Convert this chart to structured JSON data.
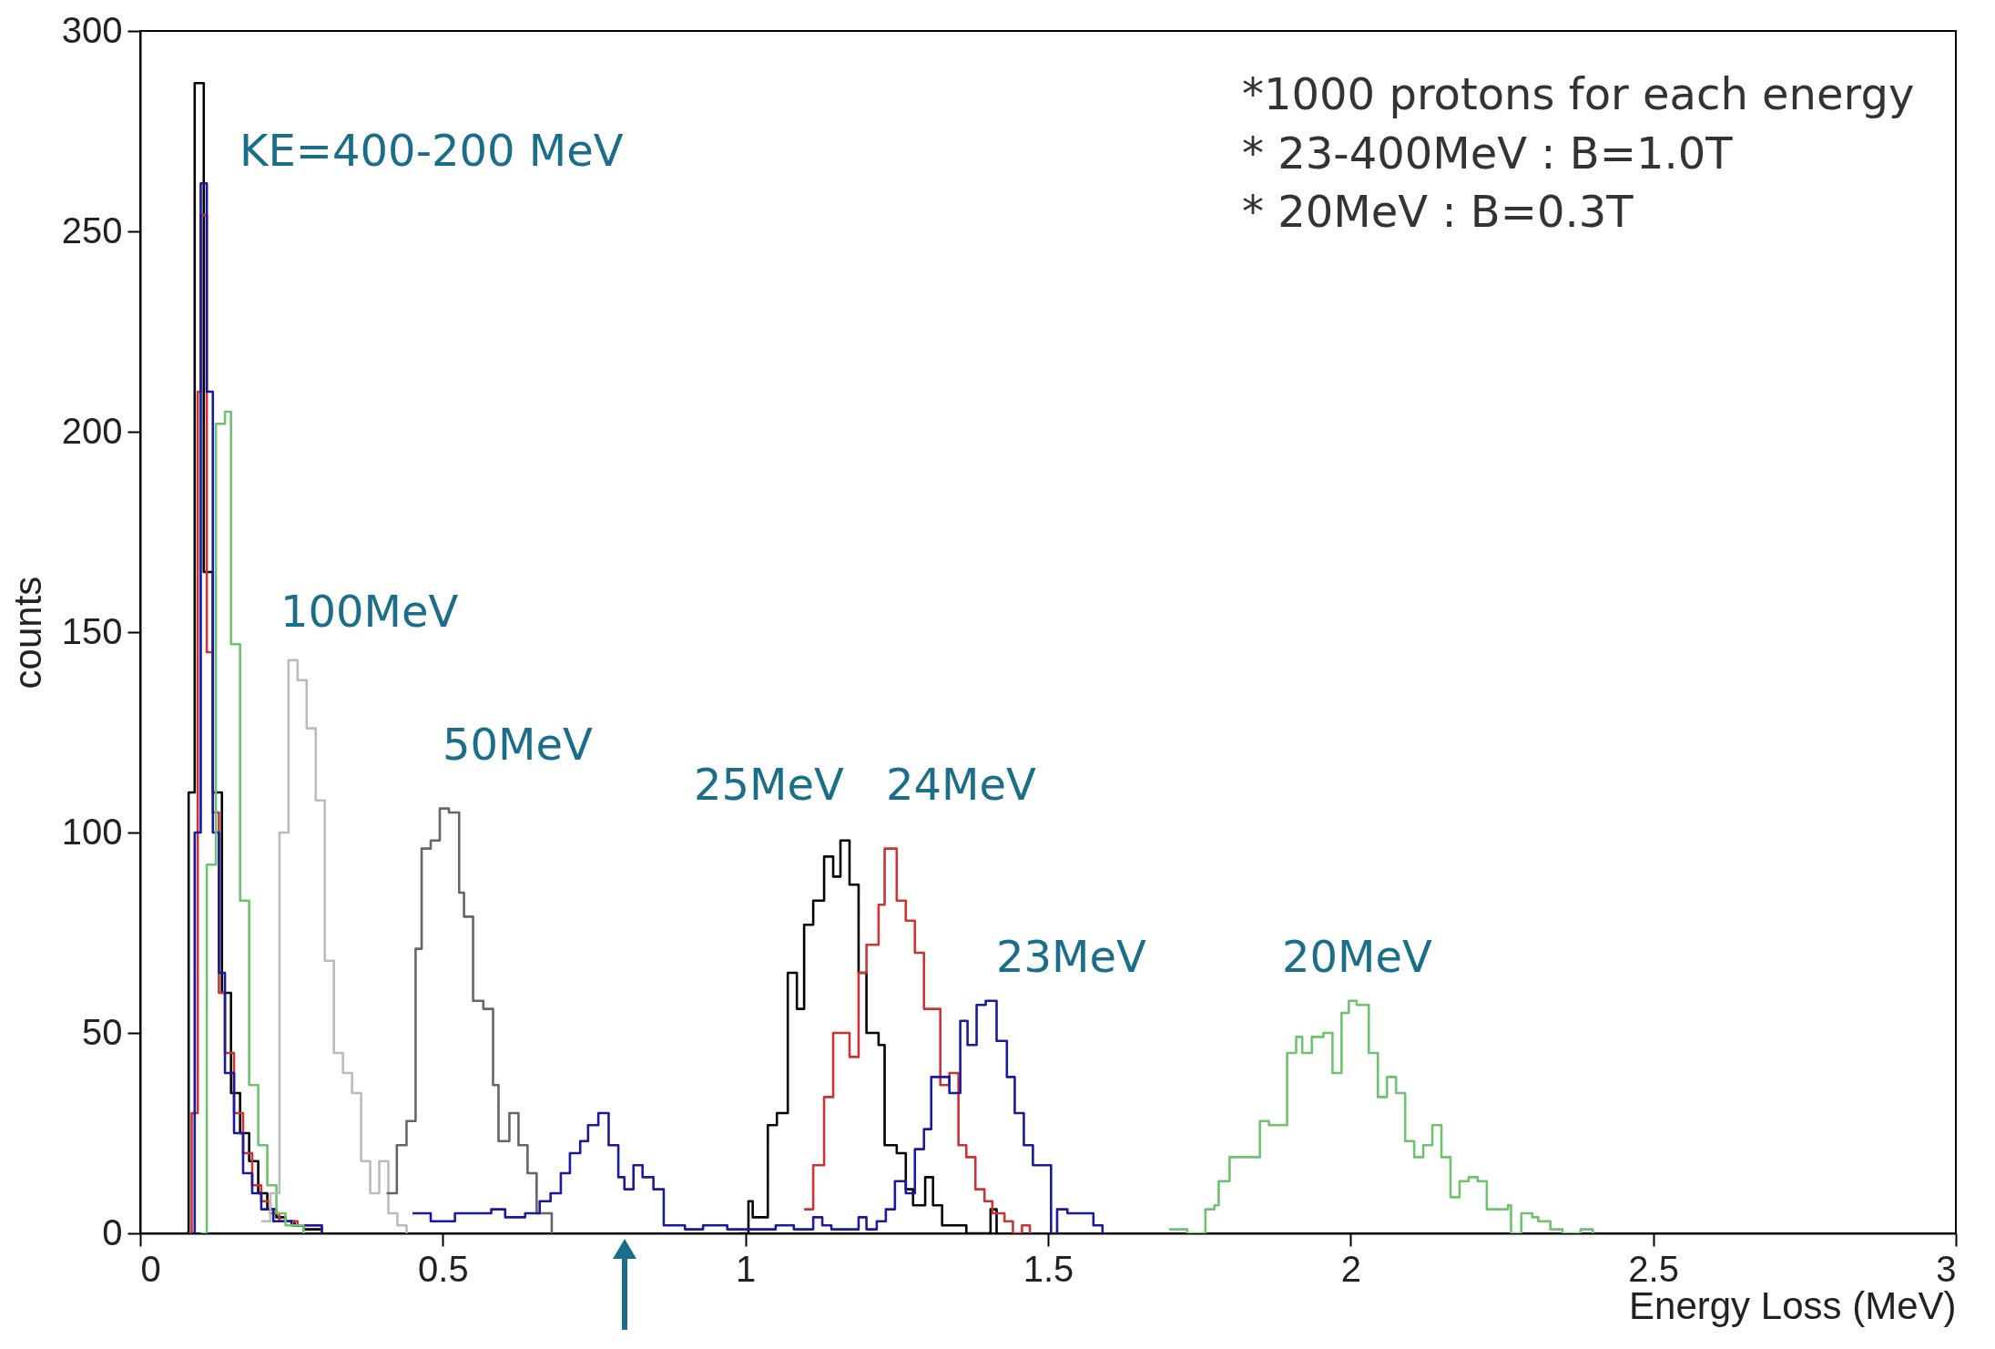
{
  "chart_data": {
    "type": "step",
    "xlabel": "Energy Loss (MeV)",
    "ylabel": "counts",
    "xlim": [
      0,
      3
    ],
    "xticks": [
      0,
      0.5,
      1,
      1.5,
      2,
      2.5,
      3
    ],
    "ylim": [
      0,
      300
    ],
    "yticks": [
      0,
      50,
      100,
      150,
      200,
      250,
      300
    ],
    "grid": false,
    "legend": false,
    "series": [
      {
        "color": "#000000",
        "x": [
          0.075,
          0.08,
          0.09,
          0.105,
          0.12,
          0.135,
          0.15,
          0.165,
          0.18,
          0.195,
          0.21,
          0.225,
          0.24,
          0.255,
          0.27,
          0.3
        ],
        "values": [
          0,
          110,
          287,
          165,
          110,
          60,
          35,
          25,
          18,
          10,
          6,
          4,
          3,
          2,
          1,
          0
        ]
      },
      {
        "color": "#cc3333",
        "x": [
          0.08,
          0.085,
          0.095,
          0.1,
          0.11,
          0.12,
          0.13,
          0.14,
          0.155,
          0.17,
          0.185,
          0.2,
          0.215,
          0.23,
          0.26,
          0.3
        ],
        "values": [
          0,
          30,
          210,
          254,
          145,
          105,
          60,
          45,
          30,
          20,
          12,
          8,
          5,
          3,
          2,
          0
        ]
      },
      {
        "color": "#1a1aa0",
        "x": [
          0.085,
          0.09,
          0.1,
          0.11,
          0.12,
          0.13,
          0.14,
          0.155,
          0.17,
          0.185,
          0.2,
          0.22,
          0.25,
          0.3
        ],
        "values": [
          0,
          100,
          262,
          210,
          100,
          65,
          40,
          25,
          15,
          10,
          6,
          3,
          2,
          0
        ]
      },
      {
        "color": "#6fc26f",
        "x": [
          0.1,
          0.11,
          0.125,
          0.14,
          0.15,
          0.165,
          0.18,
          0.195,
          0.21,
          0.225,
          0.24,
          0.27
        ],
        "values": [
          0,
          92,
          202,
          205,
          147,
          83,
          37,
          22,
          12,
          5,
          2,
          0
        ]
      },
      {
        "color": "#bbbbbb",
        "x": [
          0.2,
          0.215,
          0.23,
          0.245,
          0.26,
          0.275,
          0.29,
          0.305,
          0.32,
          0.335,
          0.35,
          0.365,
          0.38,
          0.395,
          0.41,
          0.425,
          0.44
        ],
        "values": [
          3,
          10,
          100,
          143,
          138,
          126,
          108,
          68,
          45,
          40,
          35,
          18,
          10,
          18,
          5,
          2,
          0
        ]
      },
      {
        "color": "#666666",
        "x": [
          0.407,
          0.424,
          0.44,
          0.455,
          0.465,
          0.48,
          0.495,
          0.51,
          0.527,
          0.535,
          0.55,
          0.567,
          0.583,
          0.592,
          0.61,
          0.625,
          0.64,
          0.655,
          0.68
        ],
        "values": [
          10,
          22,
          28,
          71,
          96,
          98,
          106,
          105,
          85,
          79,
          58,
          56,
          37,
          23,
          30,
          22,
          15,
          5,
          0
        ]
      },
      {
        "color": "#000000",
        "x": [
          0.99,
          1.005,
          1.012,
          1.022,
          1.037,
          1.052,
          1.07,
          1.085,
          1.097,
          1.112,
          1.13,
          1.145,
          1.157,
          1.172,
          1.187,
          1.2,
          1.22,
          1.23,
          1.25,
          1.265,
          1.277,
          1.297,
          1.31,
          1.325,
          1.365,
          1.405,
          1.415
        ],
        "values": [
          0,
          8,
          4,
          4,
          27,
          30,
          65,
          56,
          77,
          83,
          94,
          89,
          98,
          87,
          65,
          50,
          47,
          22,
          20,
          11,
          7,
          14,
          7,
          2,
          0,
          6,
          0
        ]
      },
      {
        "color": "#cc3333",
        "x": [
          1.097,
          1.112,
          1.13,
          1.145,
          1.157,
          1.172,
          1.187,
          1.2,
          1.22,
          1.23,
          1.25,
          1.265,
          1.28,
          1.295,
          1.322,
          1.337,
          1.352,
          1.365,
          1.38,
          1.395,
          1.408,
          1.428,
          1.442,
          1.457,
          1.47
        ],
        "values": [
          6,
          17,
          34,
          50,
          50,
          44,
          65,
          72,
          82,
          96,
          83,
          78,
          70,
          56,
          37,
          40,
          22,
          19,
          11,
          8,
          5,
          3,
          0,
          2,
          0
        ]
      },
      {
        "color": "#1a1aa0",
        "x": [
          0.45,
          0.48,
          0.52,
          0.58,
          0.603,
          0.636,
          0.66,
          0.678,
          0.695,
          0.71,
          0.727,
          0.74,
          0.757,
          0.774,
          0.79,
          0.8,
          0.815,
          0.83,
          0.848,
          0.865,
          0.9,
          0.93,
          0.97,
          1.02,
          1.05,
          1.08,
          1.112,
          1.127,
          1.142,
          1.187,
          1.2,
          1.217,
          1.232,
          1.247,
          1.265,
          1.28,
          1.295,
          1.307,
          1.325,
          1.337,
          1.355,
          1.367,
          1.382,
          1.397,
          1.415,
          1.432,
          1.445,
          1.46,
          1.475,
          1.505,
          1.515,
          1.532,
          1.575,
          1.59
        ],
        "values": [
          5,
          3,
          5,
          6,
          4,
          5,
          8,
          10,
          15,
          20,
          23,
          27,
          30,
          22,
          14,
          11,
          17,
          14,
          11,
          2,
          1,
          2,
          1,
          1,
          2,
          1,
          4,
          2,
          1,
          4,
          1,
          3,
          6,
          13,
          10,
          21,
          26,
          39,
          39,
          35,
          53,
          47,
          57,
          58,
          48,
          39,
          30,
          22,
          17,
          0,
          6,
          5,
          2,
          0
        ]
      },
      {
        "color": "#6fc26f",
        "x": [
          1.7,
          1.73,
          1.76,
          1.775,
          1.782,
          1.8,
          1.85,
          1.865,
          1.895,
          1.91,
          1.92,
          1.936,
          1.955,
          1.97,
          1.985,
          1.997,
          2.01,
          2.03,
          2.045,
          2.06,
          2.075,
          2.09,
          2.105,
          2.12,
          2.135,
          2.15,
          2.165,
          2.18,
          2.195,
          2.21,
          2.225,
          2.26,
          2.265,
          2.282,
          2.3,
          2.31,
          2.33,
          2.35,
          2.38,
          2.4
        ],
        "values": [
          1,
          0,
          6,
          7,
          13,
          19,
          28,
          27,
          45,
          49,
          45,
          49,
          50,
          40,
          55,
          58,
          57,
          45,
          34,
          39,
          35,
          23,
          19,
          22,
          27,
          19,
          9,
          13,
          14,
          13,
          6,
          7,
          0,
          5,
          4,
          3,
          1,
          0,
          1,
          0
        ]
      }
    ],
    "annotations": [
      "KE=400-200 MeV",
      "100MeV",
      "50MeV",
      "25MeV",
      "24MeV",
      "23MeV",
      "20MeV",
      "*1000 protons for each energy",
      "* 23-400MeV :  B=1.0T",
      "* 20MeV : B=0.3T"
    ]
  }
}
